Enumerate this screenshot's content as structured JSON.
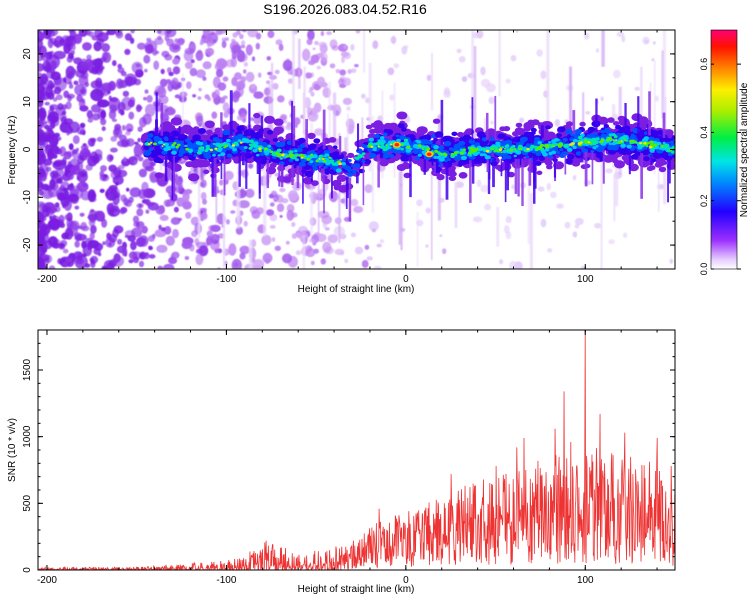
{
  "figure_title": "S196.2026.083.04.52.R16",
  "chart_data": [
    {
      "type": "heatmap",
      "title": "S196.2026.083.04.52.R16",
      "xlabel": "Height of straight line (km)",
      "ylabel": "Frequency (Hz)",
      "xlim": [
        -205,
        150
      ],
      "ylim": [
        -25,
        25
      ],
      "x_ticks": [
        -200,
        -100,
        0,
        100
      ],
      "y_ticks": [
        -20,
        -10,
        0,
        10,
        20
      ],
      "colorbar": {
        "label": "Normalized spectral amplitude",
        "range": [
          0.0,
          0.7
        ],
        "ticks": [
          0.0,
          0.2,
          0.4,
          0.6
        ],
        "colormap": "rainbow (white → purple → blue → cyan → green → yellow → red → magenta)"
      },
      "band_center_hz": [
        {
          "x": -140,
          "y": 1
        },
        {
          "x": -110,
          "y": 0
        },
        {
          "x": -90,
          "y": 1.5
        },
        {
          "x": -70,
          "y": -1
        },
        {
          "x": -45,
          "y": -2
        },
        {
          "x": -30,
          "y": -4
        },
        {
          "x": -20,
          "y": 1
        },
        {
          "x": 0,
          "y": 1
        },
        {
          "x": 20,
          "y": -1
        },
        {
          "x": 40,
          "y": 0
        },
        {
          "x": 60,
          "y": 0
        },
        {
          "x": 80,
          "y": 0.5
        },
        {
          "x": 100,
          "y": 1.5
        },
        {
          "x": 120,
          "y": 2
        },
        {
          "x": 150,
          "y": 0
        }
      ]
    },
    {
      "type": "line",
      "title": "",
      "xlabel": "Height of straight line (km)",
      "ylabel": "SNR (10 * v/v)",
      "xlim": [
        -205,
        150
      ],
      "ylim": [
        0,
        1800
      ],
      "x_ticks": [
        -200,
        -100,
        0,
        100
      ],
      "y_ticks": [
        0,
        500,
        1000,
        1500
      ],
      "series": [
        {
          "name": "SNR",
          "color": "#ee3333",
          "envelope": [
            {
              "x": -205,
              "y": 20
            },
            {
              "x": -150,
              "y": 25
            },
            {
              "x": -130,
              "y": 40
            },
            {
              "x": -110,
              "y": 60
            },
            {
              "x": -90,
              "y": 110
            },
            {
              "x": -78,
              "y": 220
            },
            {
              "x": -60,
              "y": 140
            },
            {
              "x": -40,
              "y": 170
            },
            {
              "x": -25,
              "y": 260
            },
            {
              "x": -15,
              "y": 420
            },
            {
              "x": 0,
              "y": 470
            },
            {
              "x": 20,
              "y": 600
            },
            {
              "x": 40,
              "y": 720
            },
            {
              "x": 60,
              "y": 780
            },
            {
              "x": 80,
              "y": 900
            },
            {
              "x": 100,
              "y": 1000
            },
            {
              "x": 120,
              "y": 900
            },
            {
              "x": 140,
              "y": 900
            },
            {
              "x": 150,
              "y": 600
            }
          ],
          "peaks": [
            {
              "x": 100,
              "y": 1800
            },
            {
              "x": 88,
              "y": 1340
            },
            {
              "x": 108,
              "y": 1170
            },
            {
              "x": 83,
              "y": 1060
            },
            {
              "x": 122,
              "y": 1030
            },
            {
              "x": 140,
              "y": 990
            },
            {
              "x": 66,
              "y": 990
            },
            {
              "x": 92,
              "y": 960
            },
            {
              "x": 62,
              "y": 920
            },
            {
              "x": 148,
              "y": 780
            },
            {
              "x": 50,
              "y": 780
            },
            {
              "x": 25,
              "y": 720
            },
            {
              "x": -15,
              "y": 460
            },
            {
              "x": -78,
              "y": 220
            }
          ]
        }
      ]
    }
  ]
}
